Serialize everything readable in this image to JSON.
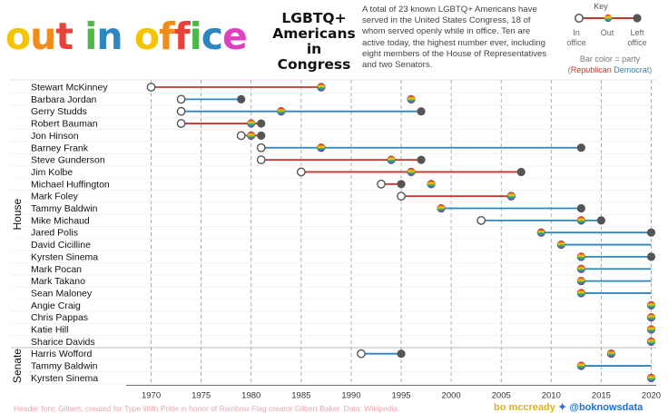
{
  "logo": {
    "text": "out in office",
    "letters": [
      {
        "ch": "o",
        "color": "#f5c400"
      },
      {
        "ch": "u",
        "color": "#f08c1c"
      },
      {
        "ch": "t",
        "color": "#e8423a"
      },
      {
        "ch": " ",
        "color": "#000"
      },
      {
        "ch": "i",
        "color": "#4db848"
      },
      {
        "ch": "n",
        "color": "#2e86c1"
      },
      {
        "ch": " ",
        "color": "#000"
      },
      {
        "ch": "o",
        "color": "#f5c400"
      },
      {
        "ch": "f",
        "color": "#f08c1c"
      },
      {
        "ch": "f",
        "color": "#e8423a"
      },
      {
        "ch": "i",
        "color": "#4db848"
      },
      {
        "ch": "c",
        "color": "#2e86c1"
      },
      {
        "ch": "e",
        "color": "#e040c0"
      }
    ]
  },
  "subtitle": [
    "LGBTQ+",
    "Americans",
    "in Congress"
  ],
  "description": "A total of 23 known LGBTQ+ Americans have served in the United States Congress, 18 of whom served openly while in office. Ten are active today, the highest number ever, including eight members of the House of Representatives and two Senators.",
  "key": {
    "title": "Key",
    "in_label": "In\noffice",
    "out_label": "Out",
    "left_label": "Left\noffice",
    "party_text": "Bar color = party",
    "republican_label": "Republican",
    "democrat_label": "Democrat"
  },
  "colors": {
    "republican": "#c0392b",
    "democrat": "#2e86c1",
    "marker": "#555555"
  },
  "footer": "Header font: Gilbert, created for Type With Pride in honor of Rainbow Flag creator Gilbert Baker. Data: Wikipedia.",
  "credit": {
    "name": "bo mccready",
    "twitter": "@boknowsdata"
  },
  "chart_data": {
    "type": "timeline",
    "x_ticks": [
      1970,
      1975,
      1980,
      1985,
      1990,
      1995,
      2000,
      2005,
      2010,
      2015,
      2020
    ],
    "xlim": [
      1967.5,
      2020.5
    ],
    "groups": [
      {
        "name": "House",
        "rows": [
          {
            "name": "Stewart McKinney",
            "party": "R",
            "start": 1970,
            "end": 1987,
            "out": 1987,
            "current": false
          },
          {
            "name": "Barbara Jordan",
            "party": "D",
            "start": 1973,
            "end": 1979,
            "out": 1996,
            "current": false
          },
          {
            "name": "Gerry Studds",
            "party": "D",
            "start": 1973,
            "end": 1997,
            "out": 1983,
            "current": false
          },
          {
            "name": "Robert Bauman",
            "party": "R",
            "start": 1973,
            "end": 1981,
            "out": 1980,
            "current": false
          },
          {
            "name": "Jon Hinson",
            "party": "R",
            "start": 1979,
            "end": 1981,
            "out": 1980,
            "current": false
          },
          {
            "name": "Barney Frank",
            "party": "D",
            "start": 1981,
            "end": 2013,
            "out": 1987,
            "current": false
          },
          {
            "name": "Steve Gunderson",
            "party": "R",
            "start": 1981,
            "end": 1997,
            "out": 1994,
            "current": false
          },
          {
            "name": "Jim Kolbe",
            "party": "R",
            "start": 1985,
            "end": 2007,
            "out": 1996,
            "current": false
          },
          {
            "name": "Michael Huffington",
            "party": "R",
            "start": 1993,
            "end": 1995,
            "out": 1998,
            "current": false
          },
          {
            "name": "Mark Foley",
            "party": "R",
            "start": 1995,
            "end": 2006,
            "out": 2006,
            "current": false
          },
          {
            "name": "Tammy Baldwin",
            "party": "D",
            "start": 1999,
            "end": 2013,
            "out": 1999,
            "current": false
          },
          {
            "name": "Mike Michaud",
            "party": "D",
            "start": 2003,
            "end": 2015,
            "out": 2013,
            "current": false
          },
          {
            "name": "Jared Polis",
            "party": "D",
            "start": 2009,
            "end": 2020,
            "out": 2009,
            "current": false
          },
          {
            "name": "David Cicilline",
            "party": "D",
            "start": 2011,
            "end": 2020,
            "out": 2011,
            "current": true
          },
          {
            "name": "Kyrsten Sinema",
            "party": "D",
            "start": 2013,
            "end": 2020,
            "out": 2013,
            "current": false
          },
          {
            "name": "Mark Pocan",
            "party": "D",
            "start": 2013,
            "end": 2020,
            "out": 2013,
            "current": true
          },
          {
            "name": "Mark Takano",
            "party": "D",
            "start": 2013,
            "end": 2020,
            "out": 2013,
            "current": true
          },
          {
            "name": "Sean Maloney",
            "party": "D",
            "start": 2013,
            "end": 2020,
            "out": 2013,
            "current": true
          },
          {
            "name": "Angie Craig",
            "party": "D",
            "start": 2020,
            "end": 2020,
            "out": 2020,
            "current": true
          },
          {
            "name": "Chris Pappas",
            "party": "D",
            "start": 2020,
            "end": 2020,
            "out": 2020,
            "current": true
          },
          {
            "name": "Katie Hill",
            "party": "D",
            "start": 2020,
            "end": 2020,
            "out": 2020,
            "current": true
          },
          {
            "name": "Sharice Davids",
            "party": "D",
            "start": 2020,
            "end": 2020,
            "out": 2020,
            "current": true
          }
        ]
      },
      {
        "name": "Senate",
        "rows": [
          {
            "name": "Harris Wofford",
            "party": "D",
            "start": 1991,
            "end": 1995,
            "out": 2016,
            "current": false
          },
          {
            "name": "Tammy Baldwin",
            "party": "D",
            "start": 2013,
            "end": 2020,
            "out": 2013,
            "current": true
          },
          {
            "name": "Kyrsten Sinema",
            "party": "D",
            "start": 2020,
            "end": 2020,
            "out": 2020,
            "current": true
          }
        ]
      }
    ]
  }
}
